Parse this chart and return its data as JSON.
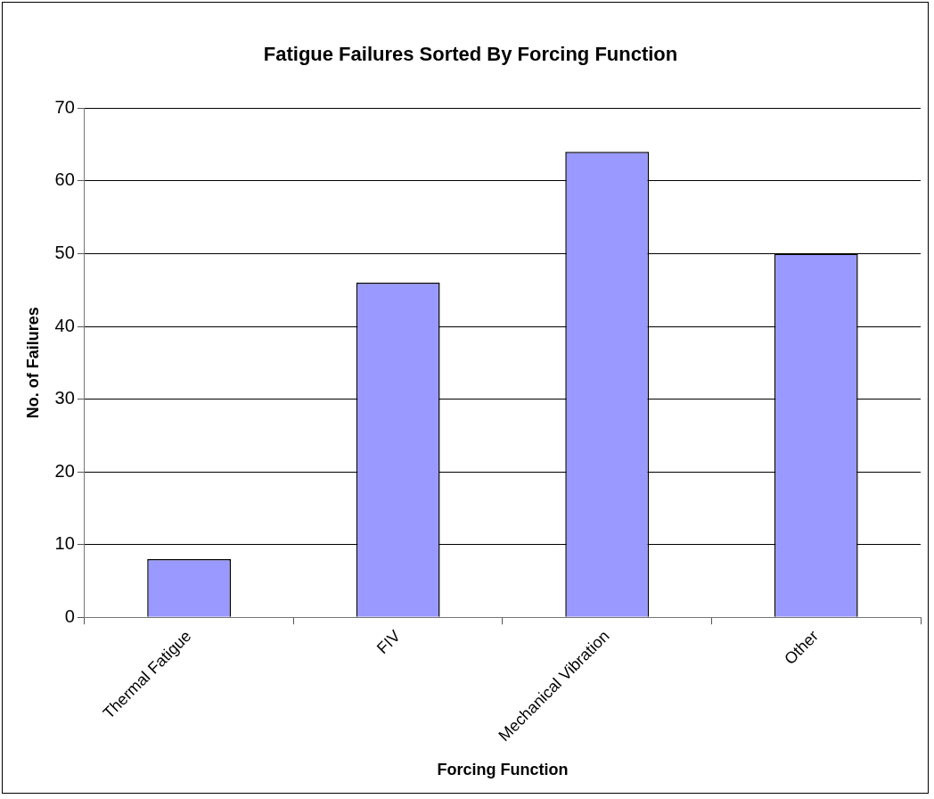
{
  "chart_data": {
    "type": "bar",
    "title": "Fatigue Failures Sorted By Forcing Function",
    "xlabel": "Forcing Function",
    "ylabel": "No. of Failures",
    "categories": [
      "Thermal Fatigue",
      "FIV",
      "Mechanical Vibration",
      "Other"
    ],
    "values": [
      8,
      46,
      64,
      50
    ],
    "color": "#9999ff",
    "ylim": [
      0,
      70
    ],
    "yticks": [
      0,
      10,
      20,
      30,
      40,
      50,
      60,
      70
    ],
    "grid": "y",
    "legend": false
  }
}
